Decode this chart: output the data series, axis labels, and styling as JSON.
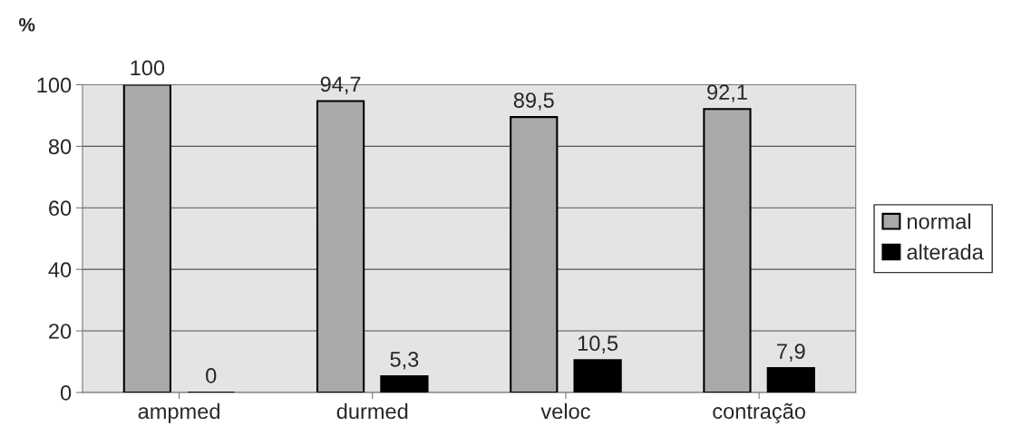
{
  "chart_data": {
    "type": "bar",
    "ylabel": "%",
    "categories": [
      "ampmed",
      "durmed",
      "veloc",
      "contração"
    ],
    "series": [
      {
        "name": "normal",
        "color": "#a9a9a9",
        "values": [
          100,
          94.7,
          89.5,
          92.1
        ],
        "value_labels": [
          "100",
          "94,7",
          "89,5",
          "92,1"
        ]
      },
      {
        "name": "alterada",
        "color": "#000000",
        "values": [
          0,
          5.3,
          10.5,
          7.9
        ],
        "value_labels": [
          "0",
          "5,3",
          "10,5",
          "7,9"
        ]
      }
    ],
    "ylim": [
      0,
      100
    ],
    "yticks": [
      0,
      20,
      40,
      60,
      80,
      100
    ],
    "grid": "y",
    "legend": "right"
  }
}
